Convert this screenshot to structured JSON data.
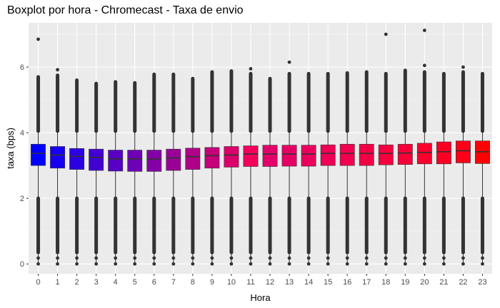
{
  "chart_data": {
    "type": "boxplot",
    "title": "Boxplot por hora - Chromecast - Taxa de envio",
    "xlabel": "Hora",
    "ylabel": "taxa (bps)",
    "ylim": [
      -0.3,
      7.35
    ],
    "yticks": [
      0,
      2,
      4,
      6
    ],
    "grid": true,
    "legend": "none",
    "categories": [
      "0",
      "1",
      "2",
      "3",
      "4",
      "5",
      "6",
      "7",
      "8",
      "9",
      "10",
      "11",
      "12",
      "13",
      "14",
      "15",
      "16",
      "17",
      "18",
      "19",
      "20",
      "21",
      "22",
      "23"
    ],
    "boxes": [
      {
        "q1": 3.0,
        "median": 3.37,
        "q3": 3.65,
        "whisker_low": 0.0,
        "whisker_high": 5.7,
        "outliers": [
          6.85
        ],
        "color": "#0000ff"
      },
      {
        "q1": 2.92,
        "median": 3.32,
        "q3": 3.58,
        "whisker_low": 0.0,
        "whisker_high": 5.75,
        "outliers": [
          5.92
        ],
        "color": "#1600f0"
      },
      {
        "q1": 2.88,
        "median": 3.28,
        "q3": 3.52,
        "whisker_low": 0.0,
        "whisker_high": 5.6,
        "outliers": [],
        "color": "#2c00e1"
      },
      {
        "q1": 2.85,
        "median": 3.25,
        "q3": 3.5,
        "whisker_low": 0.0,
        "whisker_high": 5.5,
        "outliers": [],
        "color": "#4200d2"
      },
      {
        "q1": 2.83,
        "median": 3.2,
        "q3": 3.47,
        "whisker_low": 0.0,
        "whisker_high": 5.55,
        "outliers": [],
        "color": "#5800c4"
      },
      {
        "q1": 2.82,
        "median": 3.2,
        "q3": 3.47,
        "whisker_low": 0.0,
        "whisker_high": 5.52,
        "outliers": [],
        "color": "#6e00b5"
      },
      {
        "q1": 2.82,
        "median": 3.2,
        "q3": 3.47,
        "whisker_low": 0.0,
        "whisker_high": 5.78,
        "outliers": [],
        "color": "#8400a6"
      },
      {
        "q1": 2.85,
        "median": 3.23,
        "q3": 3.5,
        "whisker_low": 0.0,
        "whisker_high": 5.78,
        "outliers": [],
        "color": "#9a0097"
      },
      {
        "q1": 2.88,
        "median": 3.27,
        "q3": 3.53,
        "whisker_low": 0.0,
        "whisker_high": 5.65,
        "outliers": [],
        "color": "#b00088"
      },
      {
        "q1": 2.92,
        "median": 3.3,
        "q3": 3.55,
        "whisker_low": 0.0,
        "whisker_high": 5.85,
        "outliers": [],
        "color": "#c6007a"
      },
      {
        "q1": 2.95,
        "median": 3.32,
        "q3": 3.58,
        "whisker_low": 0.0,
        "whisker_high": 5.88,
        "outliers": [],
        "color": "#dc006b"
      },
      {
        "q1": 2.97,
        "median": 3.35,
        "q3": 3.6,
        "whisker_low": 0.0,
        "whisker_high": 5.8,
        "outliers": [
          5.95
        ],
        "color": "#f2005c"
      },
      {
        "q1": 2.97,
        "median": 3.35,
        "q3": 3.62,
        "whisker_low": 0.0,
        "whisker_high": 5.65,
        "outliers": [],
        "color": "#e4006a"
      },
      {
        "q1": 2.98,
        "median": 3.35,
        "q3": 3.62,
        "whisker_low": 0.0,
        "whisker_high": 5.8,
        "outliers": [
          6.15
        ],
        "color": "#e70063"
      },
      {
        "q1": 2.98,
        "median": 3.35,
        "q3": 3.62,
        "whisker_low": 0.0,
        "whisker_high": 5.8,
        "outliers": [],
        "color": "#ea005c"
      },
      {
        "q1": 3.0,
        "median": 3.37,
        "q3": 3.63,
        "whisker_low": 0.0,
        "whisker_high": 5.8,
        "outliers": [],
        "color": "#ed0055"
      },
      {
        "q1": 3.0,
        "median": 3.37,
        "q3": 3.65,
        "whisker_low": 0.0,
        "whisker_high": 5.82,
        "outliers": [],
        "color": "#f0004e"
      },
      {
        "q1": 3.0,
        "median": 3.37,
        "q3": 3.65,
        "whisker_low": 0.0,
        "whisker_high": 5.85,
        "outliers": [],
        "color": "#f20046"
      },
      {
        "q1": 3.02,
        "median": 3.37,
        "q3": 3.63,
        "whisker_low": 0.0,
        "whisker_high": 5.8,
        "outliers": [
          7.0
        ],
        "color": "#f5003f"
      },
      {
        "q1": 3.03,
        "median": 3.38,
        "q3": 3.65,
        "whisker_low": 0.0,
        "whisker_high": 5.9,
        "outliers": [],
        "color": "#f70037"
      },
      {
        "q1": 3.05,
        "median": 3.4,
        "q3": 3.68,
        "whisker_low": 0.0,
        "whisker_high": 5.85,
        "outliers": [
          6.05,
          7.12
        ],
        "color": "#f9002e"
      },
      {
        "q1": 3.05,
        "median": 3.42,
        "q3": 3.72,
        "whisker_low": 0.0,
        "whisker_high": 5.8,
        "outliers": [],
        "color": "#fb0024"
      },
      {
        "q1": 3.08,
        "median": 3.45,
        "q3": 3.75,
        "whisker_low": 0.0,
        "whisker_high": 5.85,
        "outliers": [
          6.0
        ],
        "color": "#fd0018"
      },
      {
        "q1": 3.06,
        "median": 3.42,
        "q3": 3.75,
        "whisker_low": 0.0,
        "whisker_high": 5.8,
        "outliers": [],
        "color": "#ff0000"
      }
    ]
  }
}
